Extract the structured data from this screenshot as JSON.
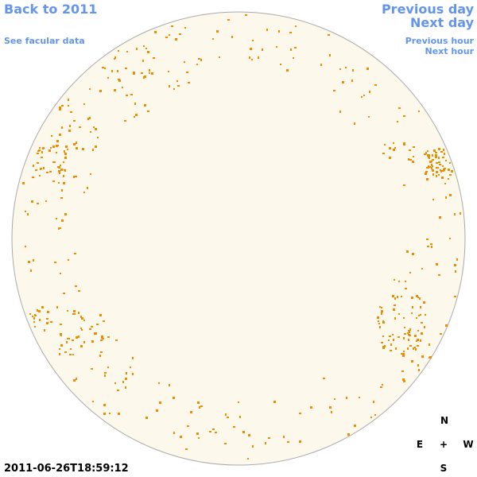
{
  "links": {
    "back": "Back to 2011",
    "facular": "See facular data",
    "prev_day": "Previous day",
    "next_day": "Next day",
    "prev_hour": "Previous hour",
    "next_hour": "Next hour"
  },
  "timestamp": "2011-06-26T18:59:12",
  "compass": {
    "north": "N",
    "east": "E",
    "center": "+",
    "west": "W",
    "south": "S"
  }
}
